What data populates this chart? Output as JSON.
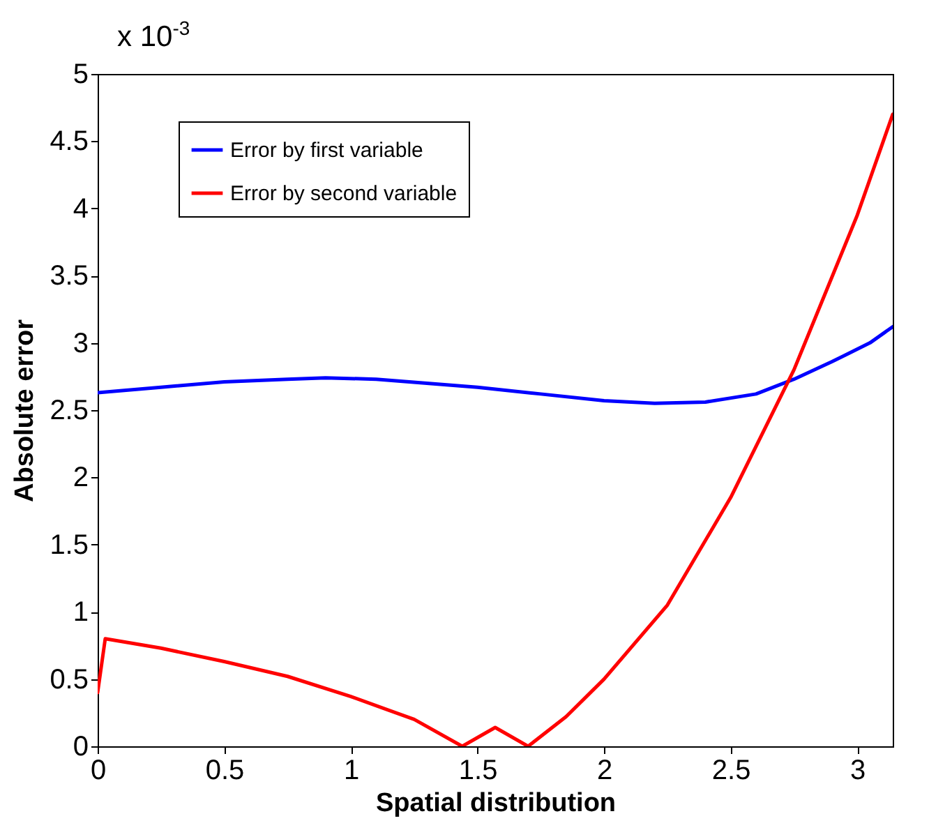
{
  "chart_data": {
    "type": "line",
    "xlabel": "Spatial distribution",
    "ylabel": "Absolute error",
    "annotations": [
      "x 10$^{-3}$"
    ],
    "xlim": [
      0,
      3.14
    ],
    "xticks": [
      0,
      0.5,
      1,
      1.5,
      2,
      2.5,
      3
    ],
    "ylim": [
      0,
      5
    ],
    "yticks": [
      0,
      0.5,
      1,
      1.5,
      2,
      2.5,
      3,
      3.5,
      4,
      4.5,
      5
    ],
    "legend": "top left",
    "grid": false,
    "series": [
      {
        "name": "Error by first variable",
        "color": "#0000ff",
        "x": [
          0,
          0.25,
          0.5,
          0.75,
          0.9,
          1.1,
          1.3,
          1.5,
          1.75,
          2,
          2.2,
          2.4,
          2.6,
          2.75,
          2.9,
          3.05,
          3.14
        ],
        "values": [
          2.63,
          2.67,
          2.71,
          2.73,
          2.74,
          2.73,
          2.7,
          2.67,
          2.62,
          2.57,
          2.55,
          2.56,
          2.62,
          2.73,
          2.86,
          3.0,
          3.12
        ]
      },
      {
        "name": "Error by second variable",
        "color": "#ff0000",
        "x": [
          0,
          0.03,
          0.25,
          0.5,
          0.75,
          1,
          1.25,
          1.44,
          1.57,
          1.7,
          1.85,
          2,
          2.25,
          2.5,
          2.75,
          3,
          3.14
        ],
        "values": [
          0.4,
          0.8,
          0.73,
          0.63,
          0.52,
          0.37,
          0.2,
          0,
          0.14,
          0,
          0.22,
          0.5,
          1.05,
          1.85,
          2.8,
          3.95,
          4.7
        ]
      }
    ]
  }
}
